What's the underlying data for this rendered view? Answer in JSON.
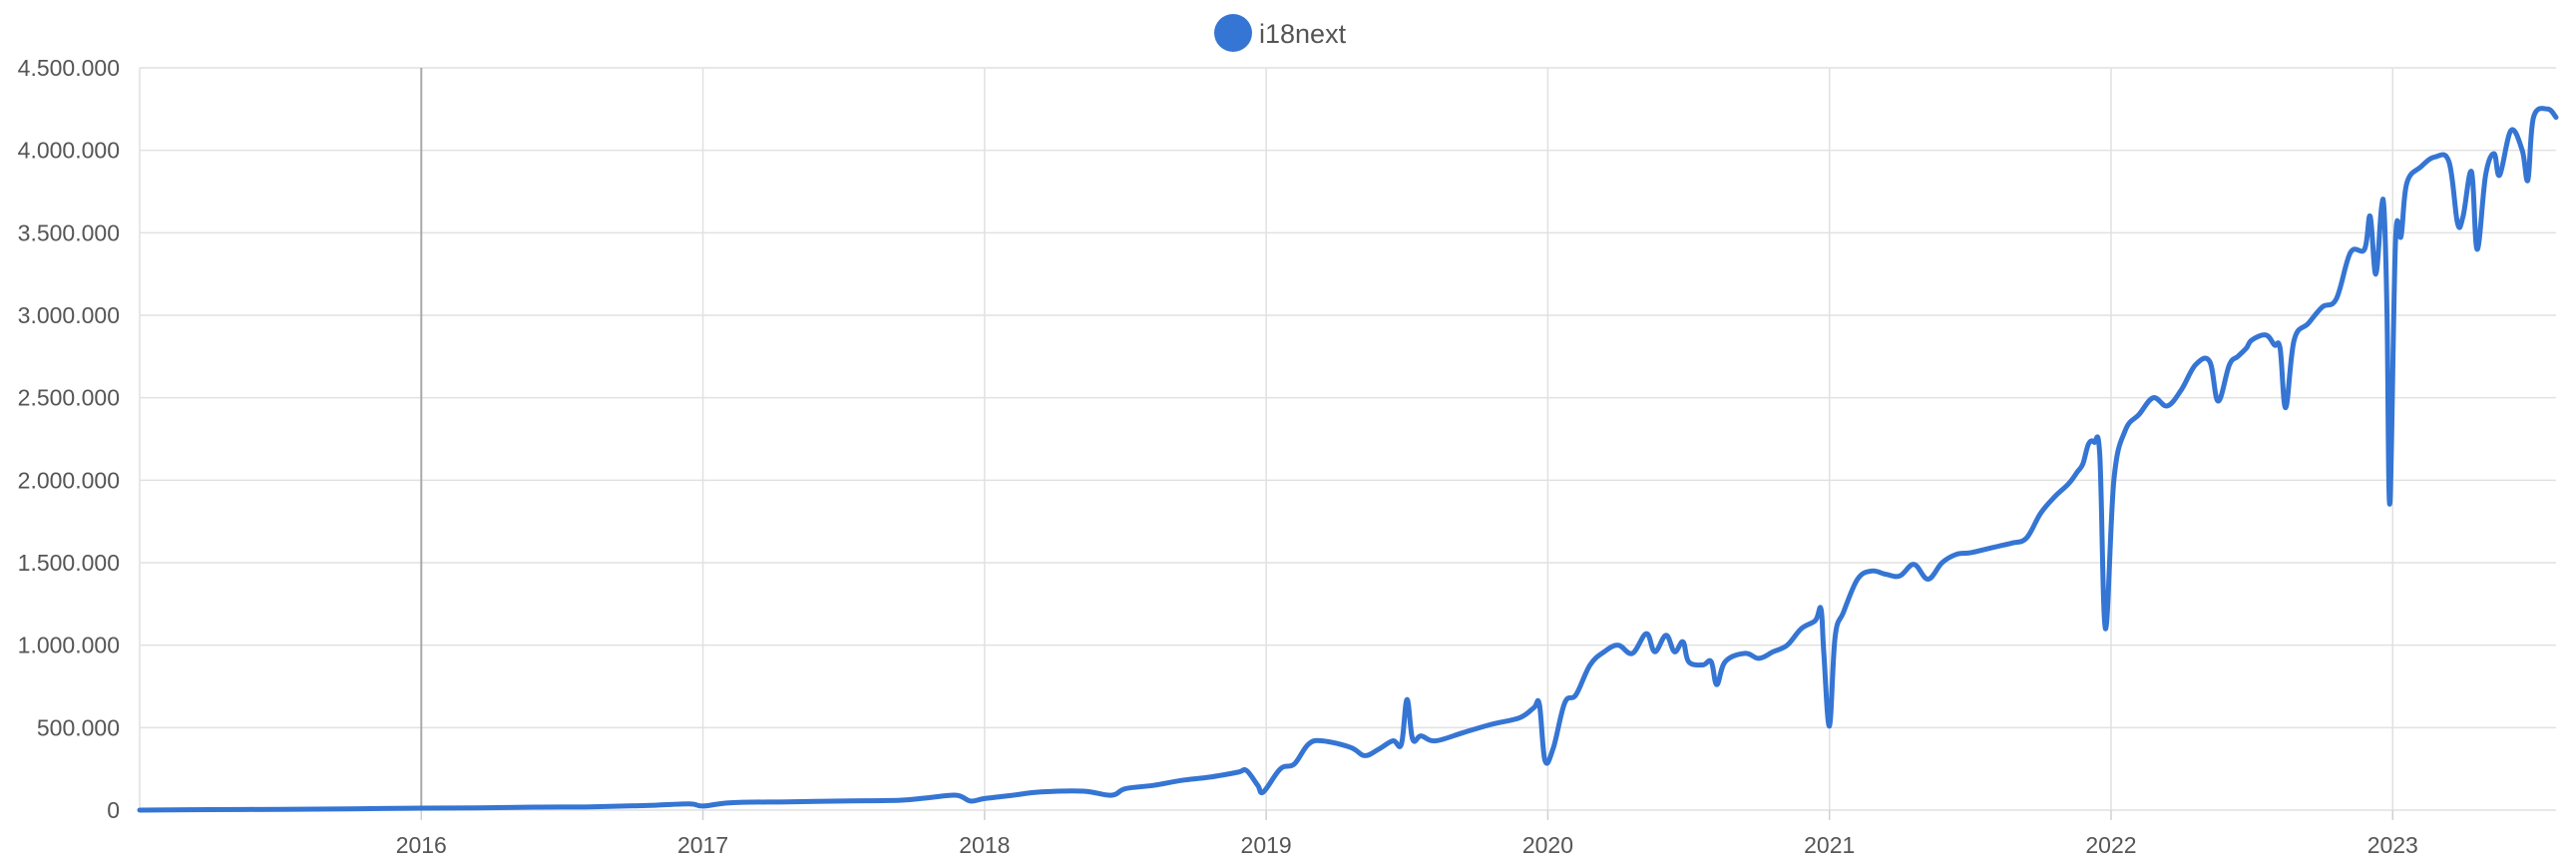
{
  "legend": {
    "label": "i18next",
    "color": "#3575d3",
    "position": "top-center"
  },
  "chart_data": {
    "type": "line",
    "title": "",
    "xlabel": "",
    "ylabel": "",
    "grid": true,
    "xlim": [
      2015.0,
      2023.58
    ],
    "ylim": [
      0,
      4500000
    ],
    "y_ticks": [
      0,
      500000,
      1000000,
      1500000,
      2000000,
      2500000,
      3000000,
      3500000,
      4000000,
      4500000
    ],
    "y_tick_labels": [
      "0",
      "500.000",
      "1.000.000",
      "1.500.000",
      "2.000.000",
      "2.500.000",
      "3.000.000",
      "3.500.000",
      "4.000.000",
      "4.500.000"
    ],
    "x_ticks": [
      2016,
      2017,
      2018,
      2019,
      2020,
      2021,
      2022,
      2023
    ],
    "x_tick_labels": [
      "2016",
      "2017",
      "2018",
      "2019",
      "2020",
      "2021",
      "2022",
      "2023"
    ],
    "series": [
      {
        "name": "i18next",
        "color": "#3575d3",
        "points": [
          [
            2015.0,
            0
          ],
          [
            2015.25,
            3000
          ],
          [
            2015.5,
            5000
          ],
          [
            2015.75,
            8000
          ],
          [
            2016.0,
            12000
          ],
          [
            2016.2,
            14000
          ],
          [
            2016.4,
            18000
          ],
          [
            2016.6,
            20000
          ],
          [
            2016.8,
            28000
          ],
          [
            2016.95,
            38000
          ],
          [
            2017.0,
            25000
          ],
          [
            2017.1,
            45000
          ],
          [
            2017.3,
            50000
          ],
          [
            2017.5,
            55000
          ],
          [
            2017.7,
            60000
          ],
          [
            2017.8,
            75000
          ],
          [
            2017.9,
            90000
          ],
          [
            2017.95,
            55000
          ],
          [
            2018.0,
            70000
          ],
          [
            2018.1,
            90000
          ],
          [
            2018.2,
            110000
          ],
          [
            2018.35,
            115000
          ],
          [
            2018.45,
            90000
          ],
          [
            2018.5,
            130000
          ],
          [
            2018.6,
            150000
          ],
          [
            2018.7,
            180000
          ],
          [
            2018.8,
            200000
          ],
          [
            2018.9,
            230000
          ],
          [
            2018.93,
            240000
          ],
          [
            2018.97,
            150000
          ],
          [
            2018.99,
            110000
          ],
          [
            2019.05,
            250000
          ],
          [
            2019.1,
            280000
          ],
          [
            2019.15,
            400000
          ],
          [
            2019.2,
            420000
          ],
          [
            2019.3,
            380000
          ],
          [
            2019.35,
            330000
          ],
          [
            2019.4,
            370000
          ],
          [
            2019.45,
            420000
          ],
          [
            2019.48,
            400000
          ],
          [
            2019.5,
            670000
          ],
          [
            2019.52,
            430000
          ],
          [
            2019.55,
            450000
          ],
          [
            2019.6,
            420000
          ],
          [
            2019.7,
            470000
          ],
          [
            2019.8,
            520000
          ],
          [
            2019.9,
            560000
          ],
          [
            2019.95,
            620000
          ],
          [
            2019.97,
            640000
          ],
          [
            2019.99,
            300000
          ],
          [
            2020.02,
            380000
          ],
          [
            2020.06,
            650000
          ],
          [
            2020.1,
            700000
          ],
          [
            2020.15,
            880000
          ],
          [
            2020.2,
            960000
          ],
          [
            2020.25,
            1000000
          ],
          [
            2020.3,
            950000
          ],
          [
            2020.35,
            1070000
          ],
          [
            2020.38,
            960000
          ],
          [
            2020.42,
            1060000
          ],
          [
            2020.45,
            960000
          ],
          [
            2020.48,
            1020000
          ],
          [
            2020.5,
            900000
          ],
          [
            2020.55,
            880000
          ],
          [
            2020.58,
            900000
          ],
          [
            2020.6,
            760000
          ],
          [
            2020.63,
            900000
          ],
          [
            2020.7,
            950000
          ],
          [
            2020.75,
            920000
          ],
          [
            2020.8,
            960000
          ],
          [
            2020.85,
            1000000
          ],
          [
            2020.9,
            1100000
          ],
          [
            2020.95,
            1150000
          ],
          [
            2020.97,
            1220000
          ],
          [
            2020.98,
            950000
          ],
          [
            2021.0,
            510000
          ],
          [
            2021.02,
            1050000
          ],
          [
            2021.05,
            1200000
          ],
          [
            2021.1,
            1400000
          ],
          [
            2021.15,
            1450000
          ],
          [
            2021.2,
            1430000
          ],
          [
            2021.25,
            1420000
          ],
          [
            2021.3,
            1490000
          ],
          [
            2021.35,
            1400000
          ],
          [
            2021.4,
            1500000
          ],
          [
            2021.45,
            1550000
          ],
          [
            2021.5,
            1560000
          ],
          [
            2021.55,
            1580000
          ],
          [
            2021.6,
            1600000
          ],
          [
            2021.65,
            1620000
          ],
          [
            2021.7,
            1650000
          ],
          [
            2021.75,
            1800000
          ],
          [
            2021.8,
            1900000
          ],
          [
            2021.85,
            1980000
          ],
          [
            2021.88,
            2050000
          ],
          [
            2021.9,
            2100000
          ],
          [
            2021.92,
            2220000
          ],
          [
            2021.94,
            2230000
          ],
          [
            2021.96,
            2150000
          ],
          [
            2021.98,
            1100000
          ],
          [
            2022.01,
            2000000
          ],
          [
            2022.05,
            2300000
          ],
          [
            2022.1,
            2400000
          ],
          [
            2022.15,
            2500000
          ],
          [
            2022.2,
            2450000
          ],
          [
            2022.25,
            2550000
          ],
          [
            2022.3,
            2700000
          ],
          [
            2022.35,
            2720000
          ],
          [
            2022.38,
            2480000
          ],
          [
            2022.42,
            2700000
          ],
          [
            2022.45,
            2750000
          ],
          [
            2022.48,
            2800000
          ],
          [
            2022.5,
            2850000
          ],
          [
            2022.55,
            2880000
          ],
          [
            2022.58,
            2820000
          ],
          [
            2022.6,
            2800000
          ],
          [
            2022.62,
            2440000
          ],
          [
            2022.65,
            2850000
          ],
          [
            2022.7,
            2950000
          ],
          [
            2022.75,
            3050000
          ],
          [
            2022.8,
            3100000
          ],
          [
            2022.85,
            3380000
          ],
          [
            2022.9,
            3400000
          ],
          [
            2022.92,
            3600000
          ],
          [
            2022.94,
            3250000
          ],
          [
            2022.96,
            3650000
          ],
          [
            2022.97,
            3620000
          ],
          [
            2022.98,
            3000000
          ],
          [
            2022.99,
            1860000
          ],
          [
            2023.01,
            3450000
          ],
          [
            2023.03,
            3480000
          ],
          [
            2023.05,
            3800000
          ],
          [
            2023.1,
            3900000
          ],
          [
            2023.15,
            3960000
          ],
          [
            2023.2,
            3930000
          ],
          [
            2023.23,
            3560000
          ],
          [
            2023.25,
            3600000
          ],
          [
            2023.28,
            3870000
          ],
          [
            2023.3,
            3400000
          ],
          [
            2023.33,
            3850000
          ],
          [
            2023.36,
            3980000
          ],
          [
            2023.38,
            3850000
          ],
          [
            2023.42,
            4120000
          ],
          [
            2023.46,
            4000000
          ],
          [
            2023.48,
            3820000
          ],
          [
            2023.5,
            4200000
          ],
          [
            2023.55,
            4250000
          ],
          [
            2023.58,
            4200000
          ]
        ]
      }
    ]
  }
}
